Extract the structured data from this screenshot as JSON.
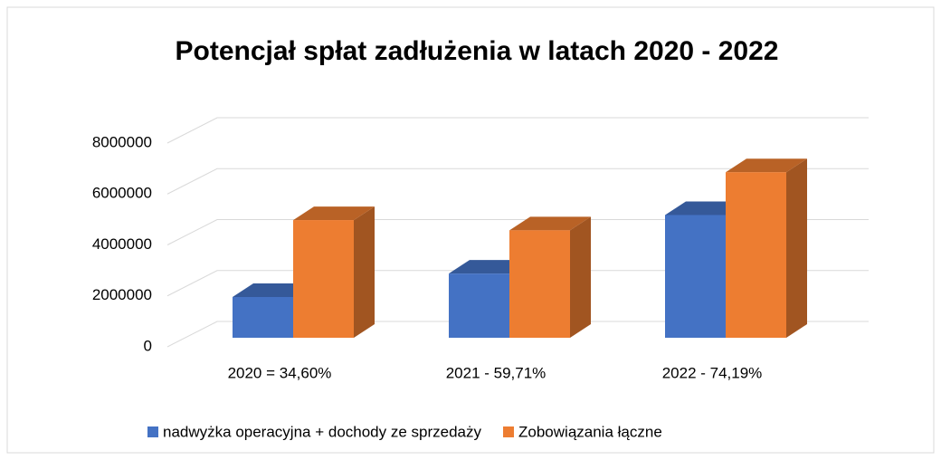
{
  "chart_data": {
    "type": "bar3d",
    "title": "Potencjał spłat zadłużenia w latach 2020 - 2022",
    "categories": [
      "2020 = 34,60%",
      "2021 - 59,71%",
      "2022 - 74,19%"
    ],
    "series": [
      {
        "name": "nadwyżka operacyjna + dochody ze sprzedaży",
        "color": "#4472c4",
        "values": [
          1600000,
          2520000,
          4820000
        ]
      },
      {
        "name": "Zobowiązania łączne",
        "color": "#ed7d31",
        "values": [
          4620000,
          4220000,
          6500000
        ]
      }
    ],
    "ylim": [
      0,
      8000000
    ],
    "yticks": [
      0,
      2000000,
      4000000,
      6000000,
      8000000
    ],
    "grid": true,
    "legend": "bottom"
  }
}
